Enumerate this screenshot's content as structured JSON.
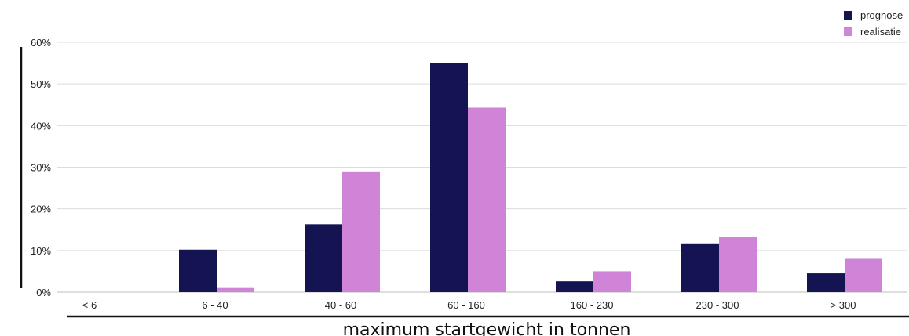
{
  "chart_data": {
    "type": "bar",
    "title": "",
    "xlabel": "maximum startgewicht in tonnen",
    "ylabel": "",
    "categories": [
      "< 6",
      "6 - 40",
      "40 - 60",
      "60 - 160",
      "160 - 230",
      "230 - 300",
      "> 300"
    ],
    "series": [
      {
        "name": "prognose",
        "color": "#151452",
        "values": [
          0,
          10.2,
          16.3,
          55,
          2.6,
          11.7,
          4.5
        ]
      },
      {
        "name": "realisatie",
        "color": "#d084d7",
        "values": [
          0,
          1,
          29,
          44.3,
          5,
          13.2,
          8
        ]
      }
    ],
    "ylim": [
      0,
      60
    ],
    "yticks": [
      "0%",
      "10%",
      "20%",
      "30%",
      "40%",
      "50%",
      "60%"
    ],
    "grid": true,
    "legend_position": "top-right"
  }
}
